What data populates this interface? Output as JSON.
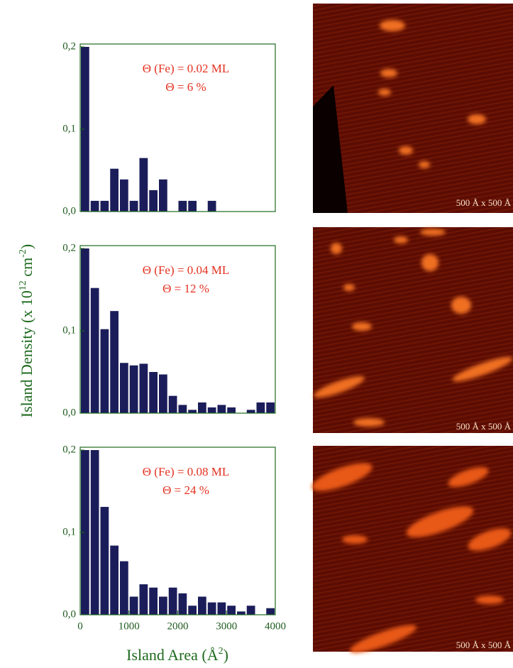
{
  "chart_data": [
    {
      "type": "histogram",
      "bins": [
        0,
        200,
        400,
        600,
        800,
        1000,
        1200,
        1400,
        1600,
        1800,
        2000,
        2200,
        2400,
        2600,
        2800,
        3000,
        3200,
        3400,
        3600,
        3800,
        4000
      ],
      "counts": [
        0.2,
        0.013,
        0.013,
        0.052,
        0.039,
        0.013,
        0.065,
        0.026,
        0.039,
        0,
        0.013,
        0.013,
        0,
        0.013,
        0,
        0,
        0,
        0,
        0,
        0
      ],
      "color": "#1b1d5a",
      "xlim": [
        0,
        4000
      ],
      "ylim": [
        0,
        0.2
      ],
      "yticks": [
        {
          "value": 0,
          "label": "0,0"
        },
        {
          "value": 0.1,
          "label": "0,1"
        },
        {
          "value": 0.2,
          "label": "0,2"
        }
      ],
      "annotations": [
        "Θ (Fe) = 0.02 ML",
        "Θ = 6 %"
      ],
      "image_label": "500 Å x 500 Å"
    },
    {
      "type": "histogram",
      "bins": [
        0,
        200,
        400,
        600,
        800,
        1000,
        1200,
        1400,
        1600,
        1800,
        2000,
        2200,
        2400,
        2600,
        2800,
        3000,
        3200,
        3400,
        3600,
        3800,
        4000
      ],
      "counts": [
        0.2,
        0.152,
        0.102,
        0.124,
        0.061,
        0.058,
        0.06,
        0.05,
        0.047,
        0.021,
        0.01,
        0.004,
        0.013,
        0.007,
        0.01,
        0.007,
        0,
        0.004,
        0.013,
        0.013
      ],
      "color": "#1b1d5a",
      "xlim": [
        0,
        4000
      ],
      "ylim": [
        0,
        0.2
      ],
      "yticks": [
        {
          "value": 0,
          "label": "0,0"
        },
        {
          "value": 0.1,
          "label": "0,1"
        },
        {
          "value": 0.2,
          "label": "0,2"
        }
      ],
      "ylabel": [
        "Island Density (x 10",
        "12",
        " cm",
        "-2",
        ")"
      ],
      "annotations": [
        "Θ (Fe) = 0.04 ML",
        "Θ = 12 %"
      ],
      "image_label": "500 Å x 500 Å"
    },
    {
      "type": "histogram",
      "bins": [
        0,
        200,
        400,
        600,
        800,
        1000,
        1200,
        1400,
        1600,
        1800,
        2000,
        2200,
        2400,
        2600,
        2800,
        3000,
        3200,
        3400,
        3600,
        3800,
        4000
      ],
      "counts": [
        0.2,
        0.2,
        0.131,
        0.084,
        0.065,
        0.022,
        0.037,
        0.033,
        0.022,
        0.033,
        0.026,
        0.011,
        0.022,
        0.015,
        0.015,
        0.011,
        0.004,
        0.011,
        0,
        0.008
      ],
      "color": "#1b1d5a",
      "xlim": [
        0,
        4000
      ],
      "ylim": [
        0,
        0.2
      ],
      "yticks": [
        {
          "value": 0,
          "label": "0,0"
        },
        {
          "value": 0.1,
          "label": "0,1"
        },
        {
          "value": 0.2,
          "label": "0,2"
        }
      ],
      "xticks": [
        0,
        1000,
        2000,
        3000,
        4000
      ],
      "xlabel": [
        "Island Area (Å",
        "2",
        ")"
      ],
      "annotations": [
        "Θ (Fe) = 0.08 ML",
        "Θ = 24 %"
      ],
      "image_label": "500 Å x 500 Å"
    }
  ]
}
